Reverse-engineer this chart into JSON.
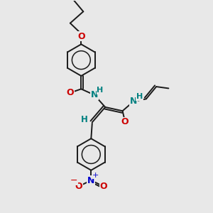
{
  "bg_color": "#e8e8e8",
  "bond_color": "#1a1a1a",
  "bond_width": 1.4,
  "O_color": "#cc0000",
  "N_color": "#0000cc",
  "NH_color": "#008080",
  "H_color": "#008080",
  "figsize": [
    3.0,
    3.0
  ],
  "dpi": 100,
  "xlim": [
    0,
    10
  ],
  "ylim": [
    0,
    10
  ]
}
